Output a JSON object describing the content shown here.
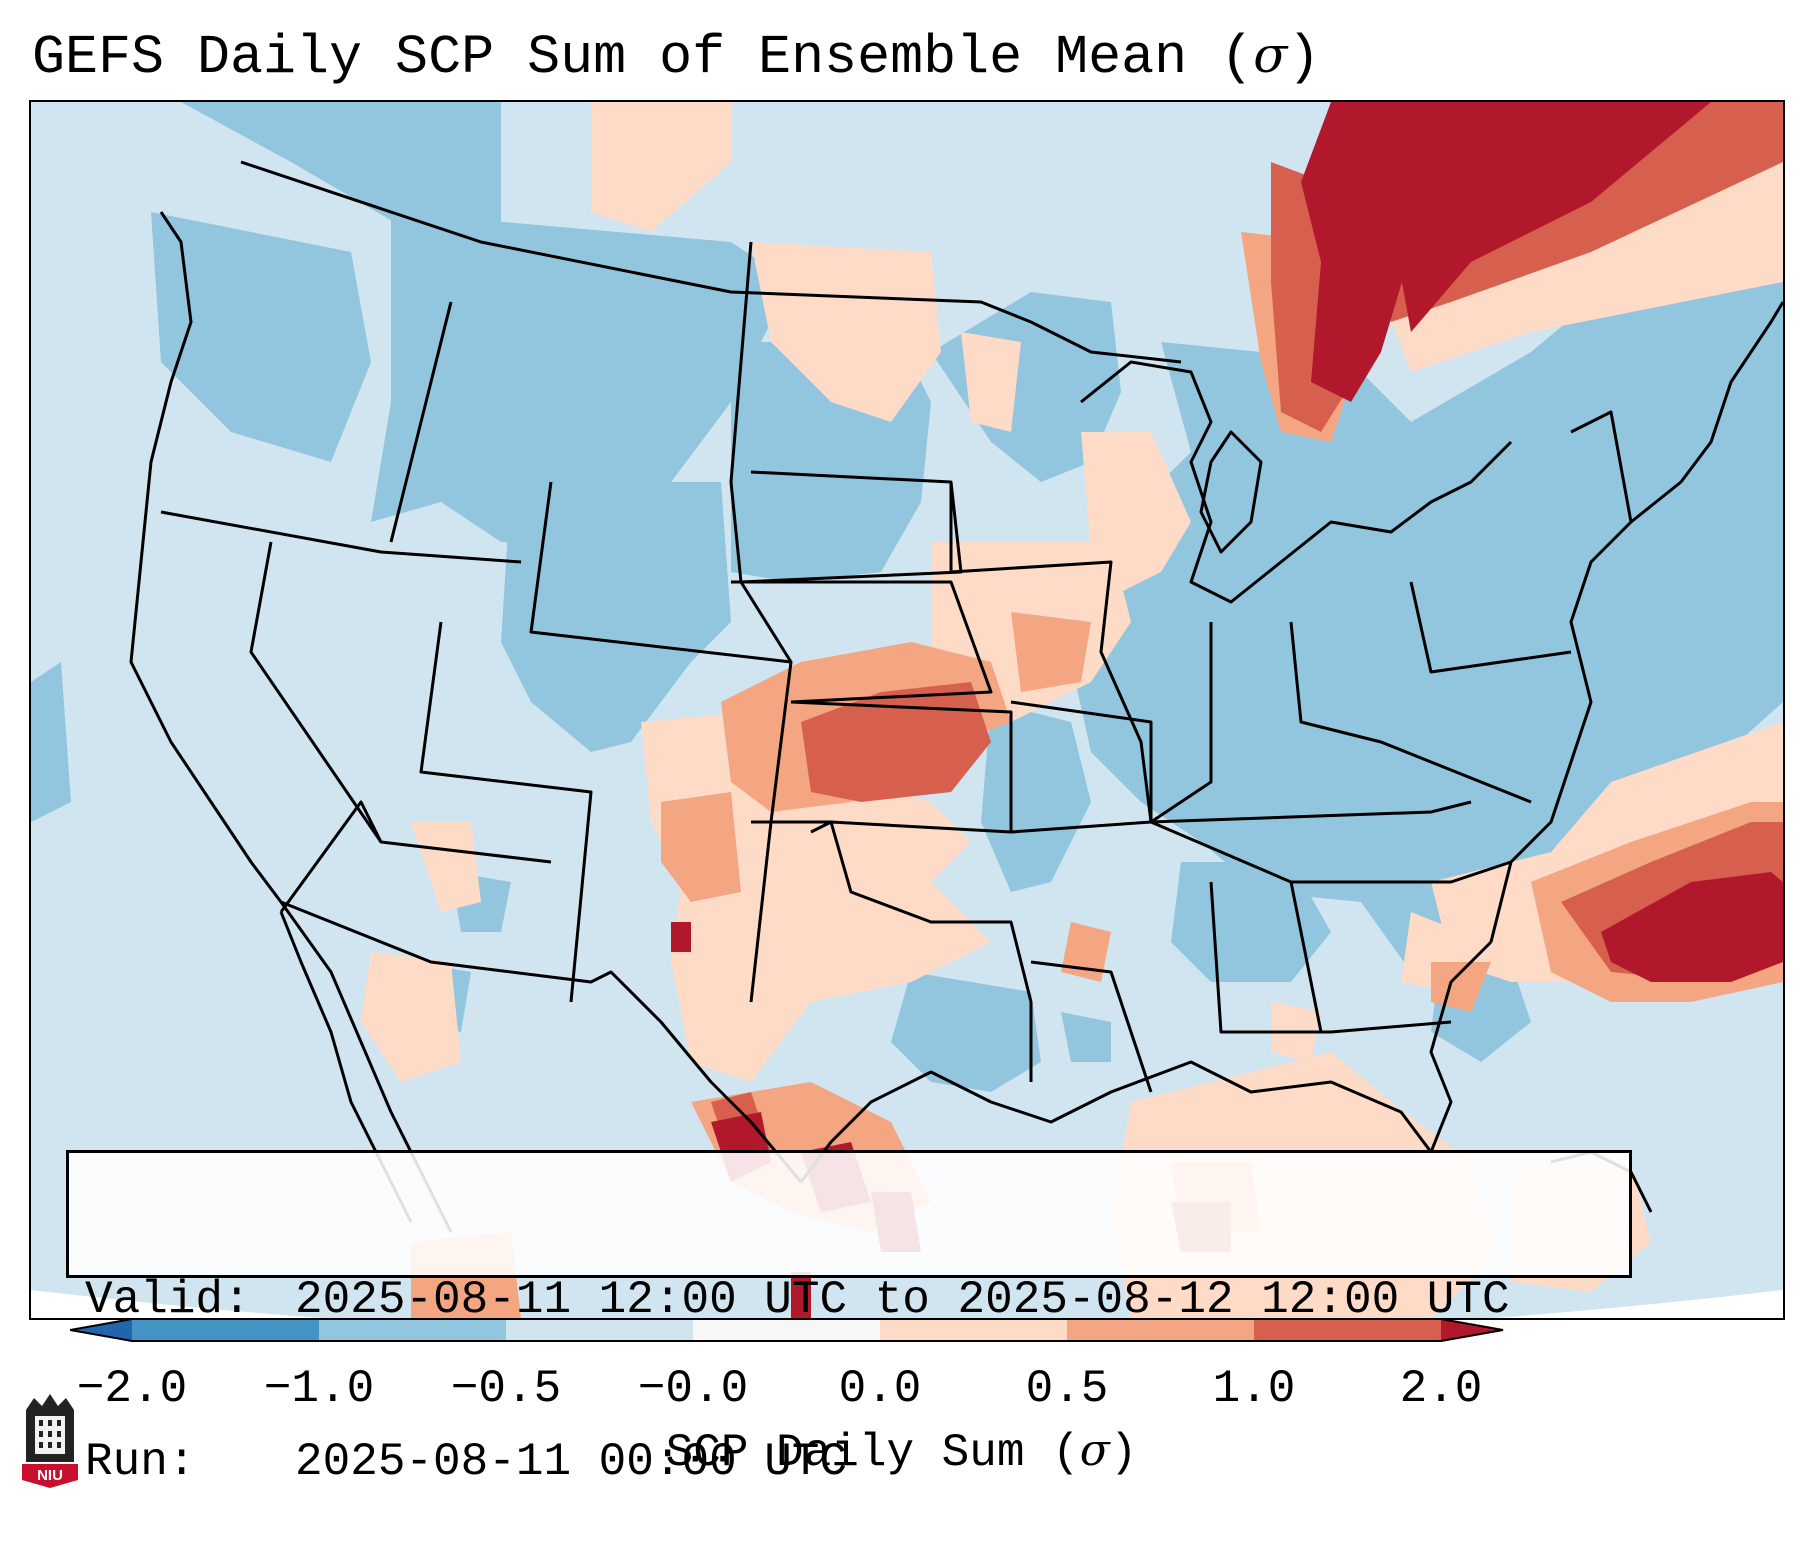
{
  "title": {
    "text": "GEFS Daily SCP Sum of Ensemble Mean (",
    "symbol": "σ",
    "suffix": ")"
  },
  "info": {
    "valid_label": "Valid:",
    "valid_value": "2025-08-11 12:00 UTC to 2025-08-12 12:00 UTC",
    "run_label": "Run:",
    "run_value": "2025-08-11 00:00 UTC"
  },
  "colorbar": {
    "label_text": "SCP Daily Sum (",
    "label_symbol": "σ",
    "label_suffix": ")",
    "ticks": [
      "−2.0",
      "−1.0",
      "−0.5",
      "−0.0",
      "0.0",
      "0.5",
      "1.0",
      "2.0"
    ],
    "bins": [
      {
        "from": -2.0,
        "to": -1.0,
        "color": "#4393c3"
      },
      {
        "from": -1.0,
        "to": -0.5,
        "color": "#92c5de"
      },
      {
        "from": -0.5,
        "to": -0.0,
        "color": "#d1e5f0"
      },
      {
        "from": -0.0,
        "to": 0.0,
        "color": "#f7f7f7"
      },
      {
        "from": 0.0,
        "to": 0.5,
        "color": "#fddbc7"
      },
      {
        "from": 0.5,
        "to": 1.0,
        "color": "#f4a582"
      },
      {
        "from": 1.0,
        "to": 2.0,
        "color": "#d6604d"
      }
    ],
    "under_color": "#2166ac",
    "over_color": "#b2182b"
  },
  "logo": {
    "text": "NIU",
    "color": "#c8102e"
  },
  "colors": {
    "ocean": "#d1e5f0",
    "neg_mid": "#92c5de",
    "pos_light": "#fddbc7",
    "pos_mid": "#f4a582",
    "pos_high": "#d6604d",
    "pos_max": "#b2182b",
    "border": "#000000"
  }
}
